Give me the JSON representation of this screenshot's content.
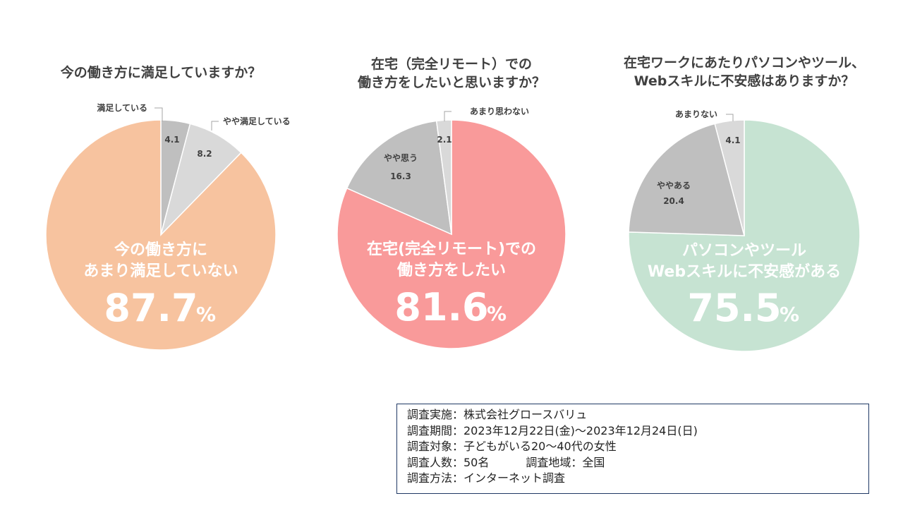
{
  "chart_data": [
    {
      "type": "pie",
      "title_lines": [
        "今の働き方に満足していますか？"
      ],
      "slices": [
        {
          "label": "満足している",
          "value": 4.1,
          "color": "#bfbfbf"
        },
        {
          "label": "やや満足している",
          "value": 8.2,
          "color": "#d9d9d9"
        },
        {
          "label": "今の働き方にあまり満足していない",
          "value": 87.7,
          "color": "#f7c39f"
        }
      ],
      "highlight": {
        "lines": [
          "今の働き方に",
          "あまり満足していない"
        ],
        "value": "87.7",
        "unit": "%"
      }
    },
    {
      "type": "pie",
      "title_lines": [
        "在宅（完全リモート）での",
        "働き方をしたいと思いますか？"
      ],
      "slices": [
        {
          "label": "在宅(完全リモート)での働き方をしたい",
          "value": 81.6,
          "color": "#f99a9a"
        },
        {
          "label": "やや思う",
          "value": 16.3,
          "color": "#bfbfbf"
        },
        {
          "label": "あまり思わない",
          "value": 2.1,
          "color": "#d9d9d9"
        }
      ],
      "highlight": {
        "lines": [
          "在宅(完全リモート)での",
          "働き方をしたい"
        ],
        "value": "81.6",
        "unit": "%"
      }
    },
    {
      "type": "pie",
      "title_lines": [
        "在宅ワークにあたりパソコンやツール、",
        "Webスキルに不安感はありますか？"
      ],
      "slices": [
        {
          "label": "パソコンやツールWebスキルに不安感がある",
          "value": 75.5,
          "color": "#c6e3d2"
        },
        {
          "label": "ややある",
          "value": 20.4,
          "color": "#bfbfbf"
        },
        {
          "label": "あまりない",
          "value": 4.1,
          "color": "#d9d9d9"
        }
      ],
      "highlight": {
        "lines": [
          "パソコンやツール",
          "Webスキルに不安感がある"
        ],
        "value": "75.5",
        "unit": "%"
      }
    }
  ],
  "survey": {
    "implementer": "調査実施：株式会社グロースバリュ",
    "period": "調査期間：2023年12月22日(金)～2023年12月24日(日)",
    "target": "調査対象：子どもがいる20～40代の女性",
    "count": "調査人数：50名",
    "region": "調査地域：全国",
    "method": "調査方法：インターネット調査"
  }
}
